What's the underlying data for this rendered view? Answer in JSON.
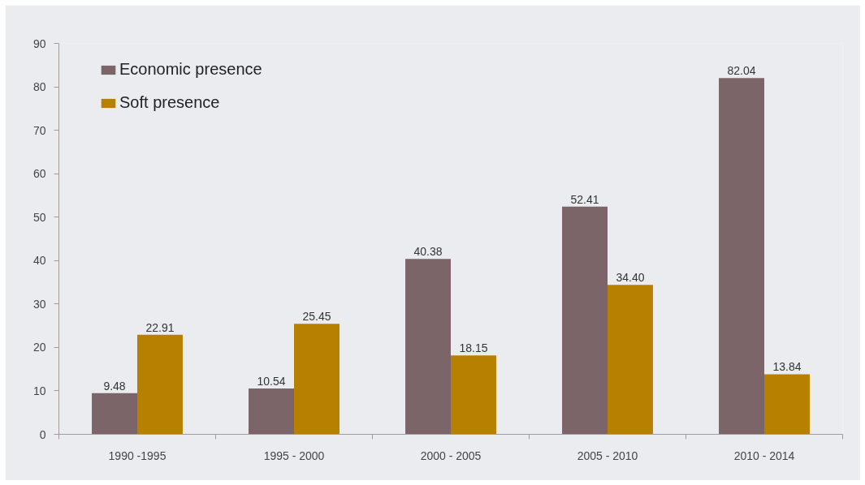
{
  "chart_data": {
    "type": "bar",
    "categories": [
      "1990 -1995",
      "1995 - 2000",
      "2000 - 2005",
      "2005 - 2010",
      "2010 - 2014"
    ],
    "series": [
      {
        "name": "Economic presence",
        "color": "#7b6568",
        "values": [
          9.48,
          10.54,
          40.38,
          52.41,
          82.04
        ],
        "value_labels": [
          "9.48",
          "10.54",
          "40.38",
          "52.41",
          "82.04"
        ]
      },
      {
        "name": "Soft presence",
        "color": "#b88000",
        "values": [
          22.91,
          25.45,
          18.15,
          34.4,
          13.84
        ],
        "value_labels": [
          "22.91",
          "25.45",
          "18.15",
          "34.40",
          "13.84"
        ]
      }
    ],
    "ylim": [
      0,
      90
    ],
    "yticks": [
      0,
      10,
      20,
      30,
      40,
      50,
      60,
      70,
      80,
      90
    ],
    "grid": false,
    "legend": "top left"
  }
}
